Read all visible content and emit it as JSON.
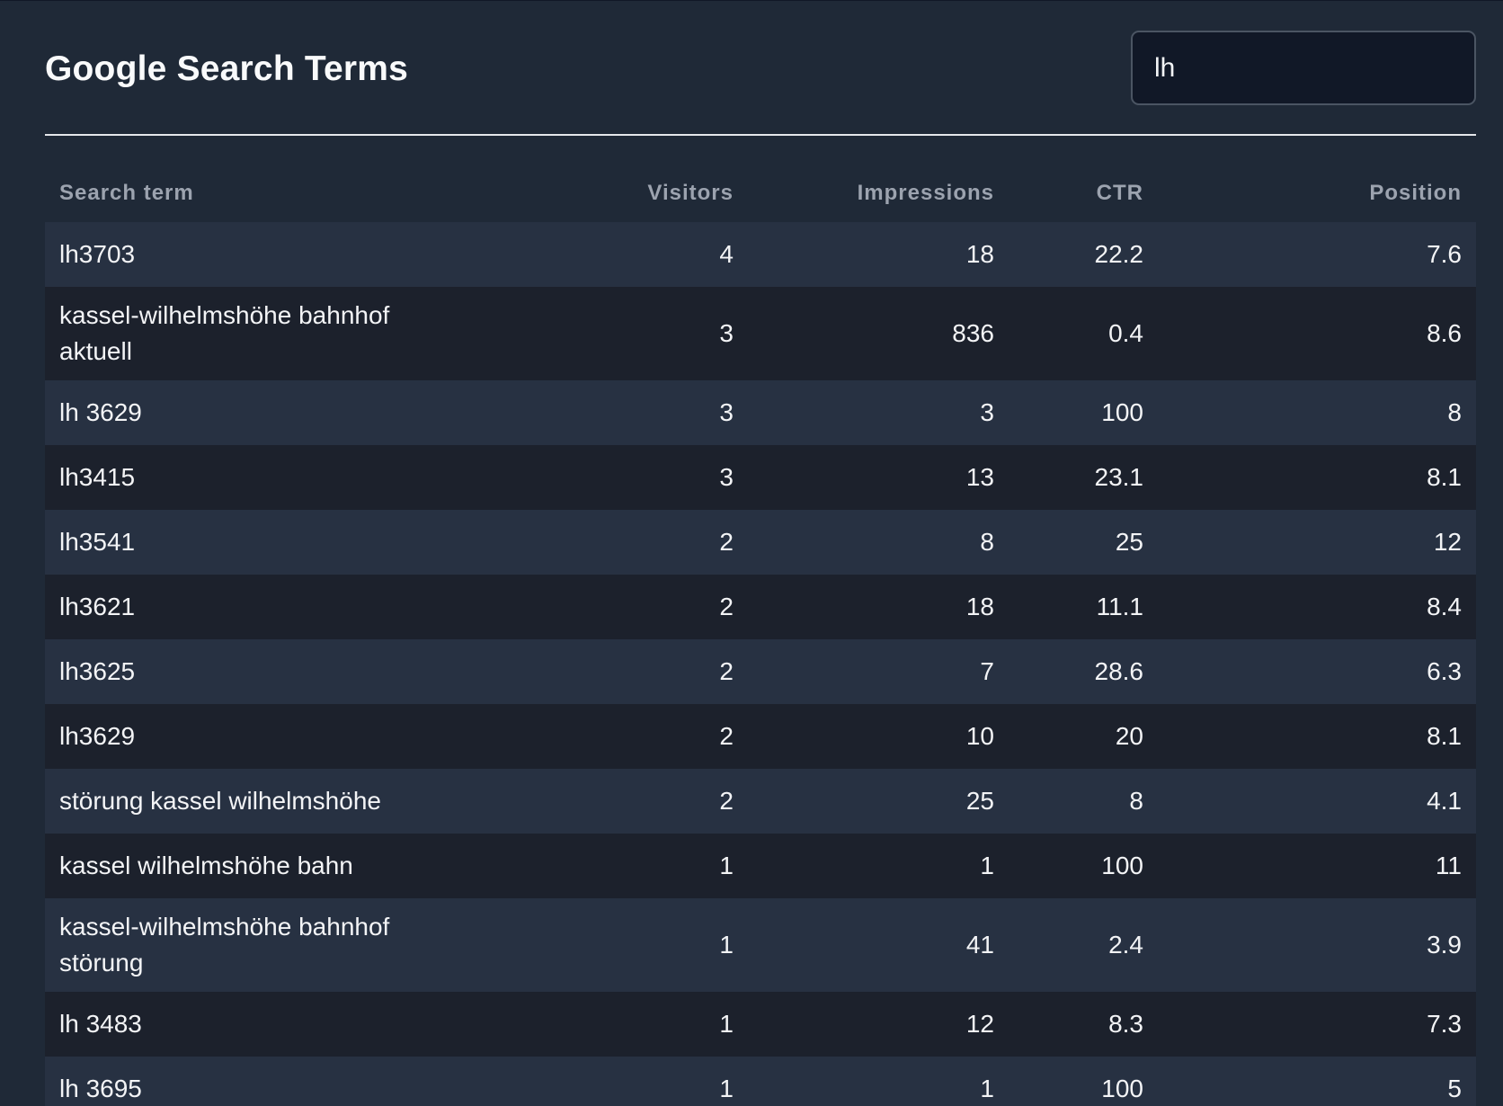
{
  "header": {
    "title": "Google Search Terms",
    "search_value": "lh",
    "search_placeholder": ""
  },
  "table": {
    "columns": [
      "Search term",
      "Visitors",
      "Impressions",
      "CTR",
      "Position"
    ],
    "rows": [
      {
        "term": "lh3703",
        "visitors": "4",
        "impressions": "18",
        "ctr": "22.2",
        "position": "7.6"
      },
      {
        "term": "kassel-wilhelmshöhe bahnhof aktuell",
        "visitors": "3",
        "impressions": "836",
        "ctr": "0.4",
        "position": "8.6"
      },
      {
        "term": "lh 3629",
        "visitors": "3",
        "impressions": "3",
        "ctr": "100",
        "position": "8"
      },
      {
        "term": "lh3415",
        "visitors": "3",
        "impressions": "13",
        "ctr": "23.1",
        "position": "8.1"
      },
      {
        "term": "lh3541",
        "visitors": "2",
        "impressions": "8",
        "ctr": "25",
        "position": "12"
      },
      {
        "term": "lh3621",
        "visitors": "2",
        "impressions": "18",
        "ctr": "11.1",
        "position": "8.4"
      },
      {
        "term": "lh3625",
        "visitors": "2",
        "impressions": "7",
        "ctr": "28.6",
        "position": "6.3"
      },
      {
        "term": "lh3629",
        "visitors": "2",
        "impressions": "10",
        "ctr": "20",
        "position": "8.1"
      },
      {
        "term": "störung kassel wilhelmshöhe",
        "visitors": "2",
        "impressions": "25",
        "ctr": "8",
        "position": "4.1"
      },
      {
        "term": "kassel wilhelmshöhe bahn",
        "visitors": "1",
        "impressions": "1",
        "ctr": "100",
        "position": "11"
      },
      {
        "term": "kassel-wilhelmshöhe bahnhof störung",
        "visitors": "1",
        "impressions": "41",
        "ctr": "2.4",
        "position": "3.9"
      },
      {
        "term": "lh 3483",
        "visitors": "1",
        "impressions": "12",
        "ctr": "8.3",
        "position": "7.3"
      },
      {
        "term": "lh 3695",
        "visitors": "1",
        "impressions": "1",
        "ctr": "100",
        "position": "5"
      }
    ]
  }
}
